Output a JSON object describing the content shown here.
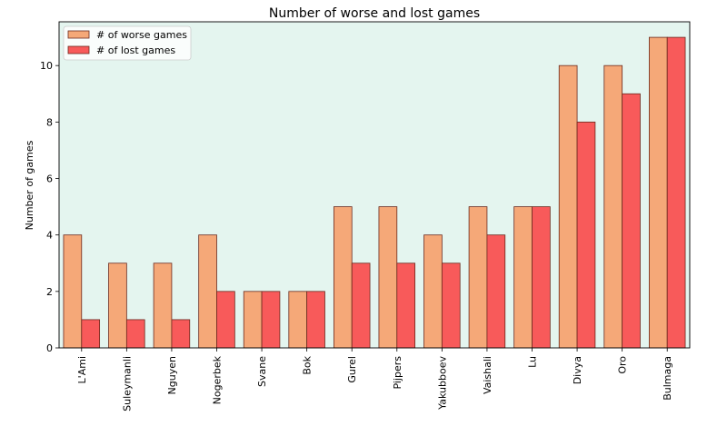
{
  "chart_data": {
    "type": "bar",
    "title": "Number of worse and lost games",
    "xlabel": "",
    "ylabel": "Number of games",
    "ylim": [
      0,
      11.55
    ],
    "yticks": [
      0,
      2,
      4,
      6,
      8,
      10
    ],
    "grid": false,
    "legend_position": "top-left",
    "background": "#e4f5ef",
    "categories": [
      "L'Ami",
      "Suleymanli",
      "Nguyen",
      "Nogerbek",
      "Svane",
      "Bok",
      "Gurel",
      "Pijpers",
      "Yakubboev",
      "Vaishali",
      "Lu",
      "Divya",
      "Oro",
      "Bulmaga"
    ],
    "series": [
      {
        "name": "# of worse games",
        "color": "#f5a878",
        "values": [
          4,
          3,
          3,
          4,
          2,
          2,
          5,
          5,
          4,
          5,
          5,
          10,
          10,
          11
        ]
      },
      {
        "name": "# of lost games",
        "color": "#f85a5a",
        "values": [
          1,
          1,
          1,
          2,
          2,
          2,
          3,
          3,
          3,
          4,
          5,
          8,
          9,
          11
        ]
      }
    ]
  }
}
